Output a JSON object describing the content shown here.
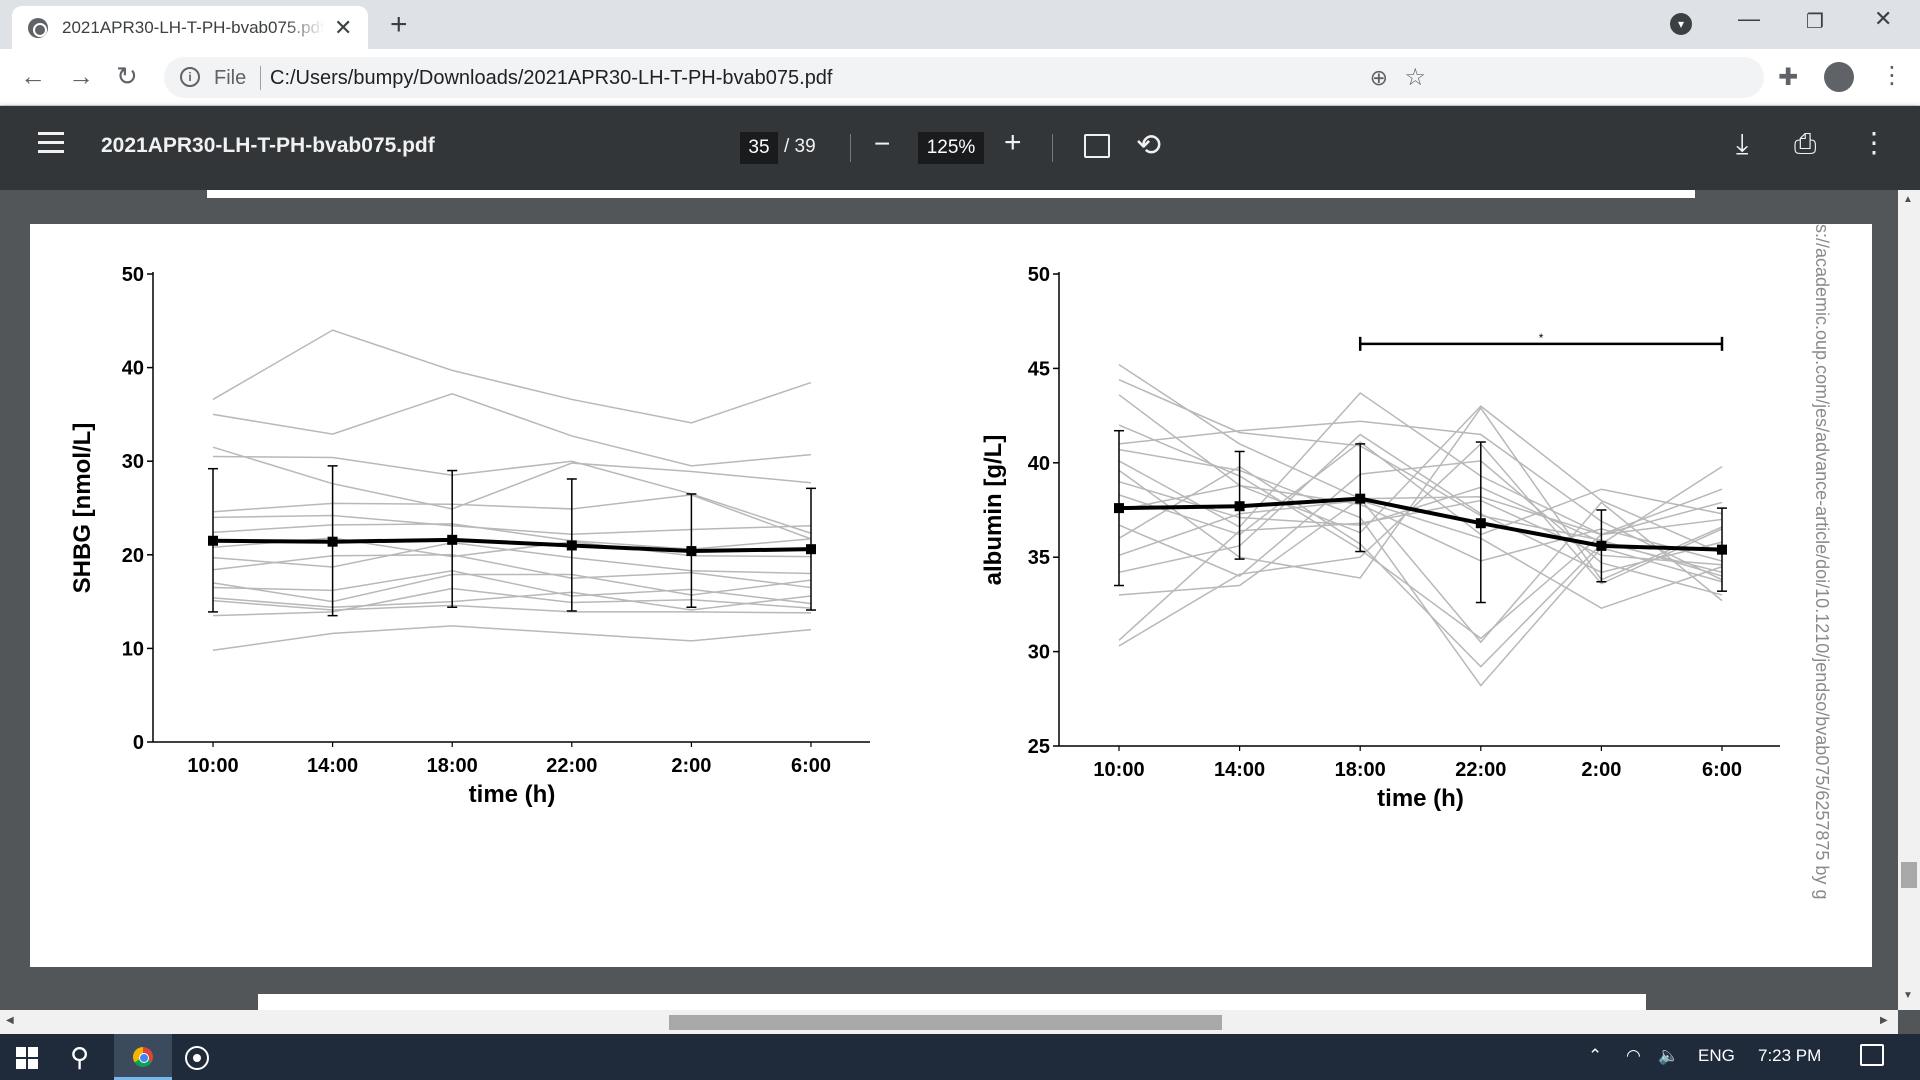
{
  "browser": {
    "tab_title": "2021APR30-LH-T-PH-bvab075.pdf",
    "new_tab": "+",
    "tab_close": "✕",
    "url_scheme": "File",
    "url": "C:/Users/bumpy/Downloads/2021APR30-LH-T-PH-bvab075.pdf",
    "icons": [
      "globe-icon",
      "close-icon",
      "plus-icon",
      "tab-search-icon",
      "minimize-icon",
      "restore-icon",
      "window-close-icon",
      "back-icon",
      "forward-icon",
      "reload-icon",
      "info-icon",
      "zoom-icon",
      "star-icon",
      "extensions-icon",
      "profile-icon",
      "menu-icon"
    ]
  },
  "pdf_toolbar": {
    "title": "2021APR30-LH-T-PH-bvab075.pdf",
    "current_page": "35",
    "total_pages": "/ 39",
    "zoom": "125%",
    "icons": [
      "hamburger-icon",
      "zoom-out-icon",
      "zoom-in-icon",
      "fit-page-icon",
      "rotate-icon",
      "download-icon",
      "print-icon",
      "more-icon"
    ]
  },
  "page": {
    "side_watermark": "s://academic.oup.com/jes/advance-article/doi/10.1210/jendso/bvab075/6257875 by g"
  },
  "taskbar": {
    "language": "ENG",
    "clock": "7:23 PM",
    "icons": [
      "windows-start-icon",
      "search-icon",
      "chrome-icon",
      "app-icon",
      "chevron-up-icon",
      "wifi-icon",
      "volume-icon",
      "notification-icon"
    ]
  },
  "chart_data": [
    {
      "type": "line",
      "ylabel": "SHBG [nmol/L]",
      "xlabel": "time (h)",
      "categories": [
        "10:00",
        "14:00",
        "18:00",
        "22:00",
        "2:00",
        "6:00"
      ],
      "ylim": [
        0,
        50
      ],
      "yticks": [
        0,
        10,
        20,
        30,
        40,
        50
      ],
      "mean": [
        21.5,
        21.4,
        21.6,
        21.0,
        20.4,
        20.6
      ],
      "error_low": [
        13.9,
        13.5,
        14.4,
        14.0,
        14.4,
        14.1
      ],
      "error_high": [
        29.2,
        29.5,
        29.0,
        28.1,
        26.5,
        27.1
      ],
      "individual": [
        [
          36.6,
          44.0,
          39.7,
          36.6,
          34.1,
          38.4
        ],
        [
          35.0,
          32.9,
          37.2,
          32.7,
          29.5,
          30.7
        ],
        [
          31.5,
          27.6,
          24.9,
          29.8,
          28.9,
          27.7
        ],
        [
          30.5,
          30.4,
          28.5,
          30.0,
          26.5,
          22.3
        ],
        [
          24.6,
          25.5,
          25.4,
          24.9,
          26.4,
          21.7
        ],
        [
          24.0,
          24.2,
          23.1,
          22.2,
          22.7,
          23.1
        ],
        [
          22.4,
          23.2,
          23.3,
          21.5,
          20.6,
          21.7
        ],
        [
          20.8,
          21.8,
          19.8,
          21.4,
          19.9,
          19.8
        ],
        [
          19.7,
          18.7,
          21.3,
          19.7,
          18.3,
          18.0
        ],
        [
          18.4,
          19.9,
          20.0,
          17.5,
          18.1,
          16.5
        ],
        [
          17.0,
          15.0,
          17.9,
          17.9,
          15.7,
          17.3
        ],
        [
          16.5,
          16.2,
          18.3,
          15.6,
          16.3,
          14.8
        ],
        [
          15.4,
          14.4,
          15.0,
          16.0,
          14.1,
          15.6
        ],
        [
          15.1,
          14.1,
          14.6,
          13.9,
          13.9,
          13.8
        ],
        [
          13.5,
          13.9,
          16.4,
          14.9,
          15.2,
          14.3
        ],
        [
          9.8,
          11.6,
          12.4,
          11.6,
          10.8,
          12.0
        ]
      ]
    },
    {
      "type": "line",
      "ylabel": "albumin [g/L]",
      "xlabel": "time (h)",
      "categories": [
        "10:00",
        "14:00",
        "18:00",
        "22:00",
        "2:00",
        "6:00"
      ],
      "ylim": [
        25,
        50
      ],
      "yticks": [
        25,
        30,
        35,
        40,
        45,
        50
      ],
      "mean": [
        37.6,
        37.7,
        38.1,
        36.8,
        35.6,
        35.4
      ],
      "error_low": [
        33.5,
        34.9,
        35.3,
        32.6,
        33.7,
        33.2
      ],
      "error_high": [
        41.7,
        40.6,
        41.0,
        41.1,
        37.5,
        37.6
      ],
      "significance": {
        "from": "18:00",
        "to": "6:00",
        "label": "*",
        "y": 46.3
      },
      "individual": [
        [
          45.2,
          41.0,
          38.1,
          38.2,
          36.2,
          37.9
        ],
        [
          44.4,
          41.6,
          40.9,
          37.2,
          35.9,
          34.0
        ],
        [
          43.6,
          38.8,
          36.3,
          43.0,
          38.0,
          35.2
        ],
        [
          42.0,
          39.3,
          35.4,
          30.7,
          36.2,
          38.6
        ],
        [
          41.0,
          41.7,
          42.2,
          41.5,
          36.9,
          33.8
        ],
        [
          40.7,
          39.6,
          37.1,
          28.2,
          35.5,
          33.7
        ],
        [
          40.1,
          36.6,
          43.7,
          39.3,
          36.2,
          37.0
        ],
        [
          39.6,
          35.0,
          33.9,
          42.9,
          33.8,
          36.6
        ],
        [
          39.0,
          37.1,
          36.7,
          38.7,
          35.8,
          34.2
        ],
        [
          38.3,
          36.2,
          41.1,
          36.2,
          38.6,
          37.3
        ],
        [
          37.5,
          38.8,
          37.8,
          34.8,
          36.5,
          34.8
        ],
        [
          36.7,
          34.0,
          39.4,
          40.1,
          34.7,
          33.0
        ],
        [
          36.0,
          39.8,
          35.7,
          29.2,
          35.7,
          39.8
        ],
        [
          35.1,
          37.3,
          38.0,
          36.0,
          32.3,
          34.5
        ],
        [
          34.2,
          35.6,
          41.5,
          37.3,
          34.2,
          35.8
        ],
        [
          33.0,
          33.5,
          38.1,
          30.5,
          37.9,
          32.7
        ],
        [
          30.6,
          36.4,
          36.8,
          38.0,
          35.1,
          34.6
        ],
        [
          30.3,
          34.1,
          35.0,
          41.0,
          33.6,
          36.5
        ]
      ]
    }
  ]
}
